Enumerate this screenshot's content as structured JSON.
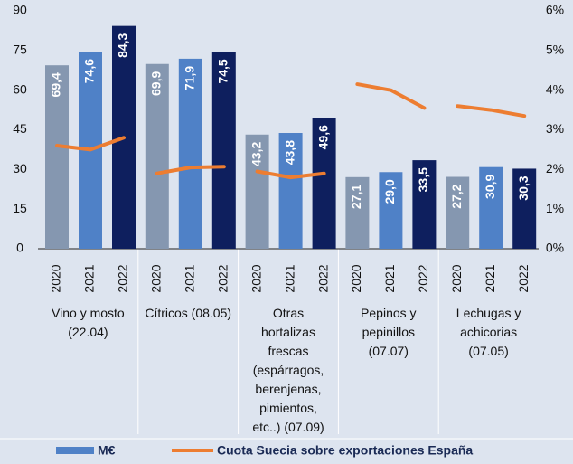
{
  "chart_data": {
    "type": "bar_line",
    "categories": [
      "Vino y mosto\n(22.04)",
      "Cítricos (08.05)",
      "Otras\nhortalizas\nfrescas\n(espárragos,\nberenjenas,\npimientos,\netc..) (07.09)",
      "Pepinos y\npepinillos\n(07.07)",
      "Lechugas y\nachicorias\n(07.05)"
    ],
    "subcategories": [
      "2020",
      "2021",
      "2022"
    ],
    "series": [
      {
        "name": "M€",
        "type": "bar",
        "color": "#4f81c7",
        "colors": [
          "#8597b0",
          "#4f81c7",
          "#0e1f5e"
        ],
        "values": [
          [
            69.4,
            74.6,
            84.3
          ],
          [
            69.9,
            71.9,
            74.5
          ],
          [
            43.2,
            43.8,
            49.6
          ],
          [
            27.1,
            29.0,
            33.5
          ],
          [
            27.2,
            30.9,
            30.3
          ]
        ],
        "value_labels": [
          [
            "69,4",
            "74,6",
            "84,3"
          ],
          [
            "69,9",
            "71,9",
            "74,5"
          ],
          [
            "43,2",
            "43,8",
            "49,6"
          ],
          [
            "27,1",
            "29,0",
            "33,5"
          ],
          [
            "27,2",
            "30,9",
            "30,3"
          ]
        ]
      },
      {
        "name": "Cuota Suecia sobre exportaciones España",
        "type": "line",
        "axis": "y2",
        "color": "#ed7d31",
        "values": [
          [
            2.6,
            2.5,
            2.8
          ],
          [
            1.9,
            2.05,
            2.07
          ],
          [
            1.95,
            1.8,
            1.9
          ],
          [
            4.15,
            4.0,
            3.55
          ],
          [
            3.6,
            3.5,
            3.35
          ]
        ]
      }
    ],
    "ylim": [
      0,
      90
    ],
    "yticks": [
      0,
      15,
      30,
      45,
      60,
      75,
      90
    ],
    "y2lim": [
      0,
      6
    ],
    "y2ticks": [
      {
        "value": 0,
        "label": "0%"
      },
      {
        "value": 1,
        "label": "1%"
      },
      {
        "value": 2,
        "label": "2%"
      },
      {
        "value": 3,
        "label": "3%"
      },
      {
        "value": 4,
        "label": "4%"
      },
      {
        "value": 5,
        "label": "5%"
      },
      {
        "value": 6,
        "label": "6%"
      }
    ]
  }
}
